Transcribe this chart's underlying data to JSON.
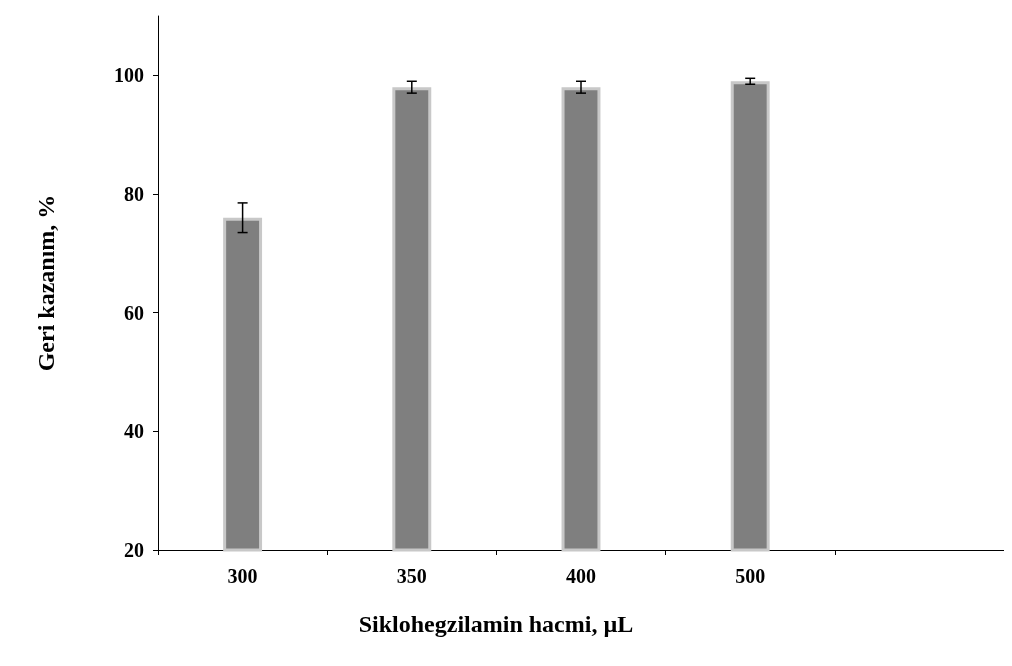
{
  "chart_data": {
    "type": "bar",
    "xlabel": "Siklohegzilamin hacmi, µL",
    "ylabel": "Geri kazanım, %",
    "categories": [
      "300",
      "350",
      "400",
      "500",
      null
    ],
    "values": [
      76,
      98,
      98,
      99,
      null
    ],
    "errors": [
      2.5,
      1,
      1,
      0.5,
      null
    ],
    "color": "#7f7f7f",
    "ylim": [
      20,
      110
    ],
    "yticks": [
      20,
      40,
      60,
      80,
      100
    ],
    "grid": false
  }
}
